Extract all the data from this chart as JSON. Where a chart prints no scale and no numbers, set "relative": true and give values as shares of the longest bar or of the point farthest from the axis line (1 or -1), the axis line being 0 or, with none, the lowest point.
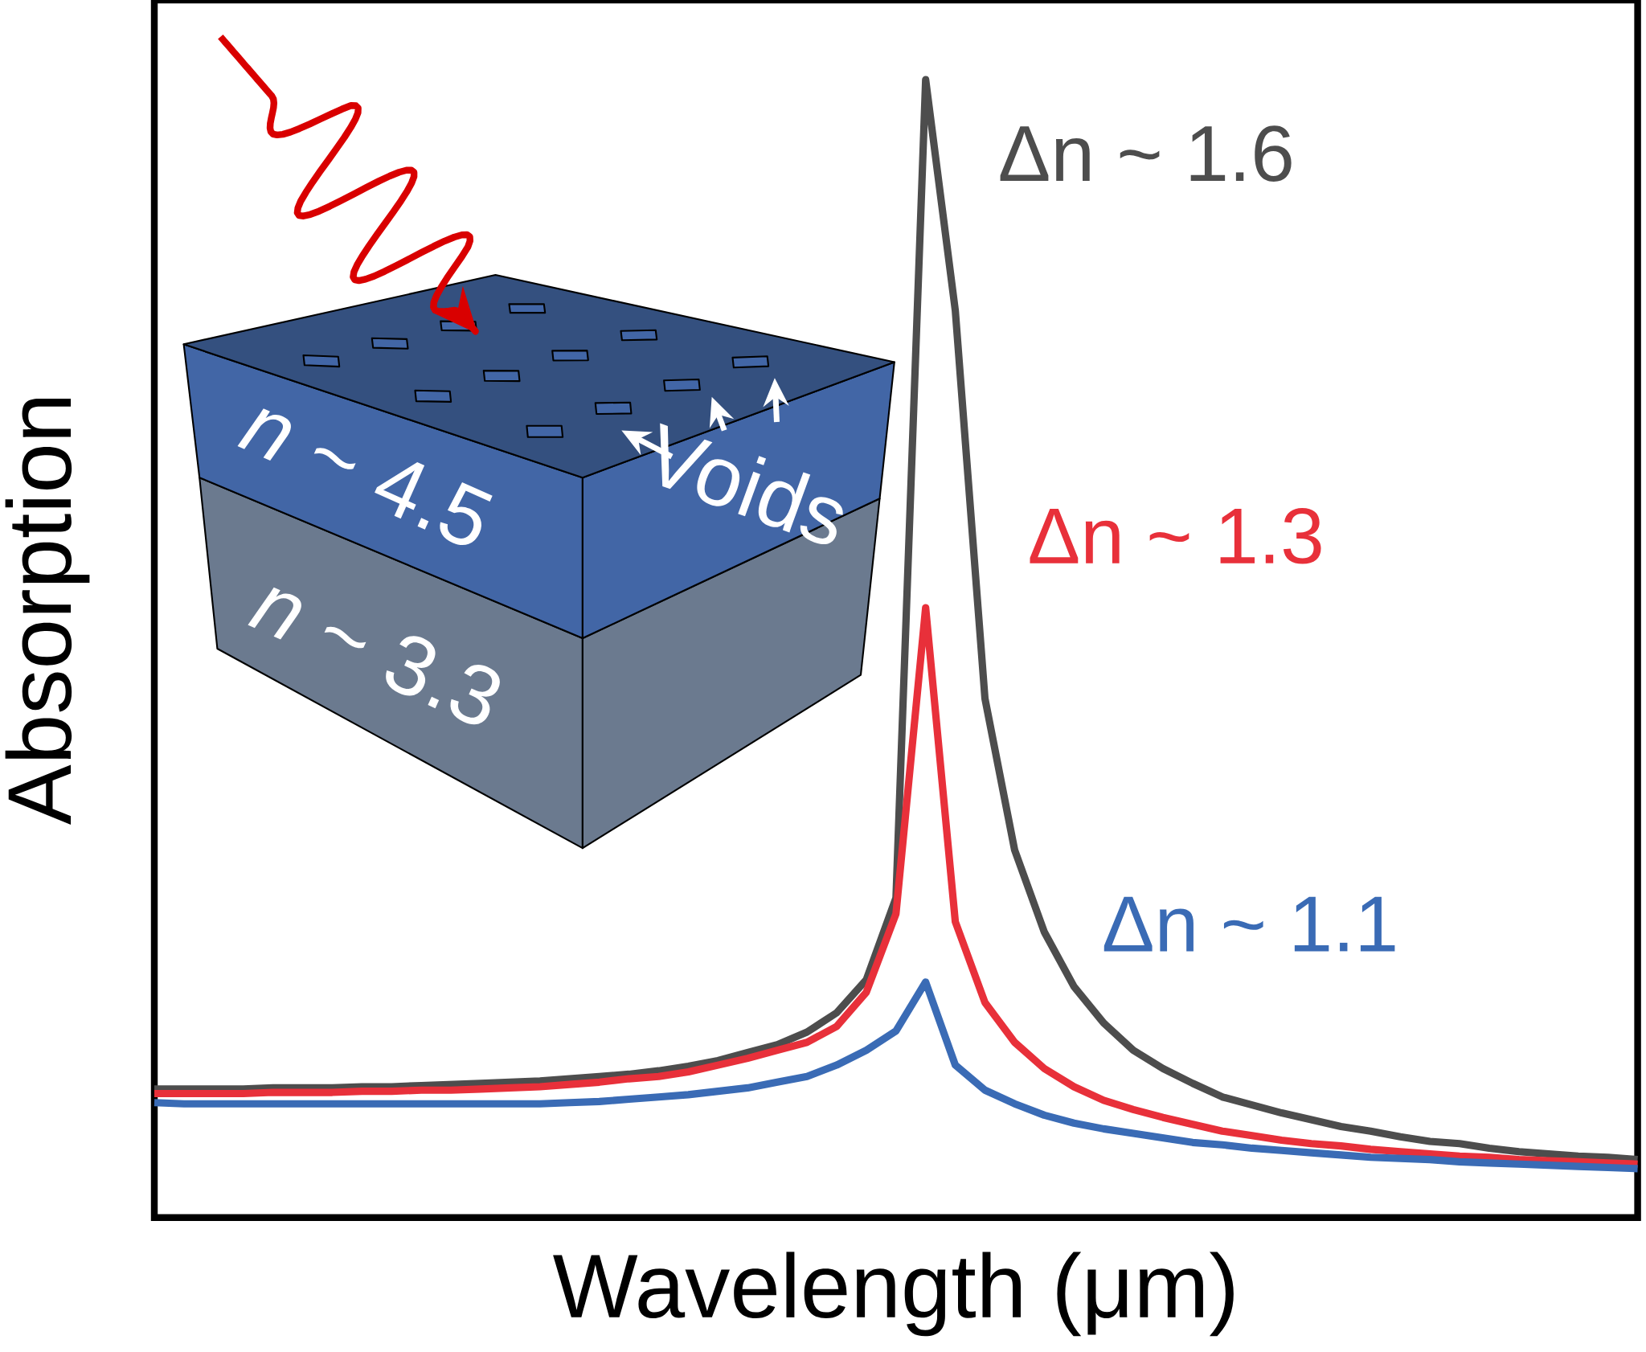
{
  "chart_data": {
    "type": "line",
    "relative": true,
    "xlabel": "Wavelength (μm)",
    "ylabel": "Absorption",
    "marker": "none",
    "line_style": "solid",
    "categories": [
      null,
      null,
      null,
      null,
      null,
      null,
      null,
      null,
      null,
      null,
      null,
      null,
      null,
      null,
      null,
      null,
      null,
      null,
      null,
      null,
      null,
      null,
      null,
      null,
      null,
      null,
      null,
      null,
      null,
      null,
      null,
      null,
      null,
      null,
      null,
      null,
      null,
      null,
      null,
      null,
      null,
      null,
      null,
      null,
      null,
      null,
      null,
      null,
      null,
      null,
      null
    ],
    "series": [
      {
        "name": "Δn ~ 1.6",
        "color": "#4d4d4d",
        "values": [
          0.113,
          0.113,
          0.113,
          0.113,
          0.114,
          0.114,
          0.114,
          0.115,
          0.115,
          0.116,
          0.117,
          0.118,
          0.119,
          0.12,
          0.122,
          0.124,
          0.126,
          0.129,
          0.133,
          0.138,
          0.145,
          0.152,
          0.163,
          0.18,
          0.209,
          0.281,
          1,
          0.797,
          0.456,
          0.323,
          0.251,
          0.203,
          0.171,
          0.147,
          0.131,
          0.118,
          0.106,
          0.099,
          0.092,
          0.086,
          0.08,
          0.076,
          0.071,
          0.067,
          0.065,
          0.061,
          0.058,
          0.056,
          0.054,
          0.053,
          0.051
        ]
      },
      {
        "name": "Δn ~ 1.3",
        "color": "#e8303a",
        "values": [
          0.109,
          0.109,
          0.109,
          0.109,
          0.11,
          0.11,
          0.11,
          0.111,
          0.111,
          0.112,
          0.112,
          0.113,
          0.114,
          0.115,
          0.117,
          0.119,
          0.122,
          0.124,
          0.128,
          0.134,
          0.14,
          0.147,
          0.154,
          0.168,
          0.198,
          0.267,
          0.536,
          0.26,
          0.189,
          0.154,
          0.131,
          0.115,
          0.103,
          0.095,
          0.088,
          0.082,
          0.076,
          0.072,
          0.068,
          0.065,
          0.063,
          0.06,
          0.058,
          0.056,
          0.054,
          0.053,
          0.051,
          0.05,
          0.049,
          0.048,
          0.047
        ]
      },
      {
        "name": "Δn ~ 1.1",
        "color": "#3a6bb5",
        "values": [
          0.101,
          0.1,
          0.1,
          0.1,
          0.1,
          0.1,
          0.1,
          0.1,
          0.1,
          0.1,
          0.1,
          0.1,
          0.1,
          0.1,
          0.101,
          0.102,
          0.104,
          0.106,
          0.108,
          0.111,
          0.114,
          0.119,
          0.124,
          0.134,
          0.147,
          0.164,
          0.207,
          0.134,
          0.112,
          0.1,
          0.09,
          0.083,
          0.078,
          0.074,
          0.07,
          0.066,
          0.064,
          0.061,
          0.059,
          0.057,
          0.055,
          0.053,
          0.052,
          0.051,
          0.049,
          0.048,
          0.047,
          0.046,
          0.045,
          0.044,
          0.043
        ]
      }
    ],
    "annotations": [
      "*n* ~ 4.5",
      "*n* ~ 3.3",
      "Voids"
    ]
  }
}
